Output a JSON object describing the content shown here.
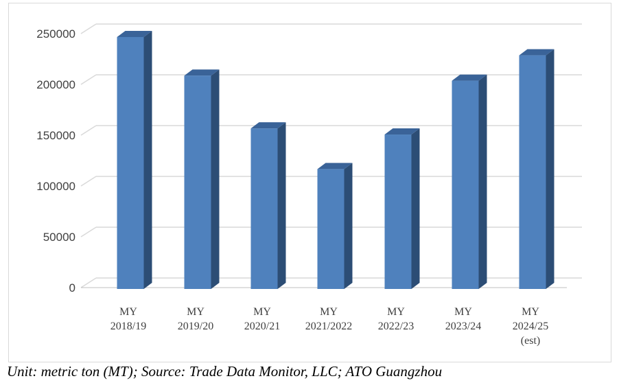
{
  "chart_data": {
    "type": "bar",
    "categories": [
      [
        "MY",
        "2018/19"
      ],
      [
        "MY",
        "2019/20"
      ],
      [
        "MY",
        "2020/21"
      ],
      [
        "MY",
        "2021/2022"
      ],
      [
        "MY",
        "2022/23"
      ],
      [
        "MY",
        "2023/24"
      ],
      [
        "MY",
        "2024/25",
        "(est)"
      ]
    ],
    "values": [
      248000,
      210000,
      158000,
      118000,
      152000,
      205000,
      230000
    ],
    "y_ticks": [
      "0",
      "50000",
      "100000",
      "150000",
      "200000",
      "250000"
    ],
    "ylim": [
      0,
      250000
    ],
    "grid": true,
    "style": "3d-column",
    "colors": {
      "bar_front": "#4f81bd",
      "bar_side": "#2c4d75",
      "bar_top": "#3a6398",
      "grid": "#d9d9d9",
      "floor": "#bfbfbf"
    }
  },
  "caption": "Unit: metric ton (MT); Source: Trade Data Monitor, LLC; ATO Guangzhou"
}
